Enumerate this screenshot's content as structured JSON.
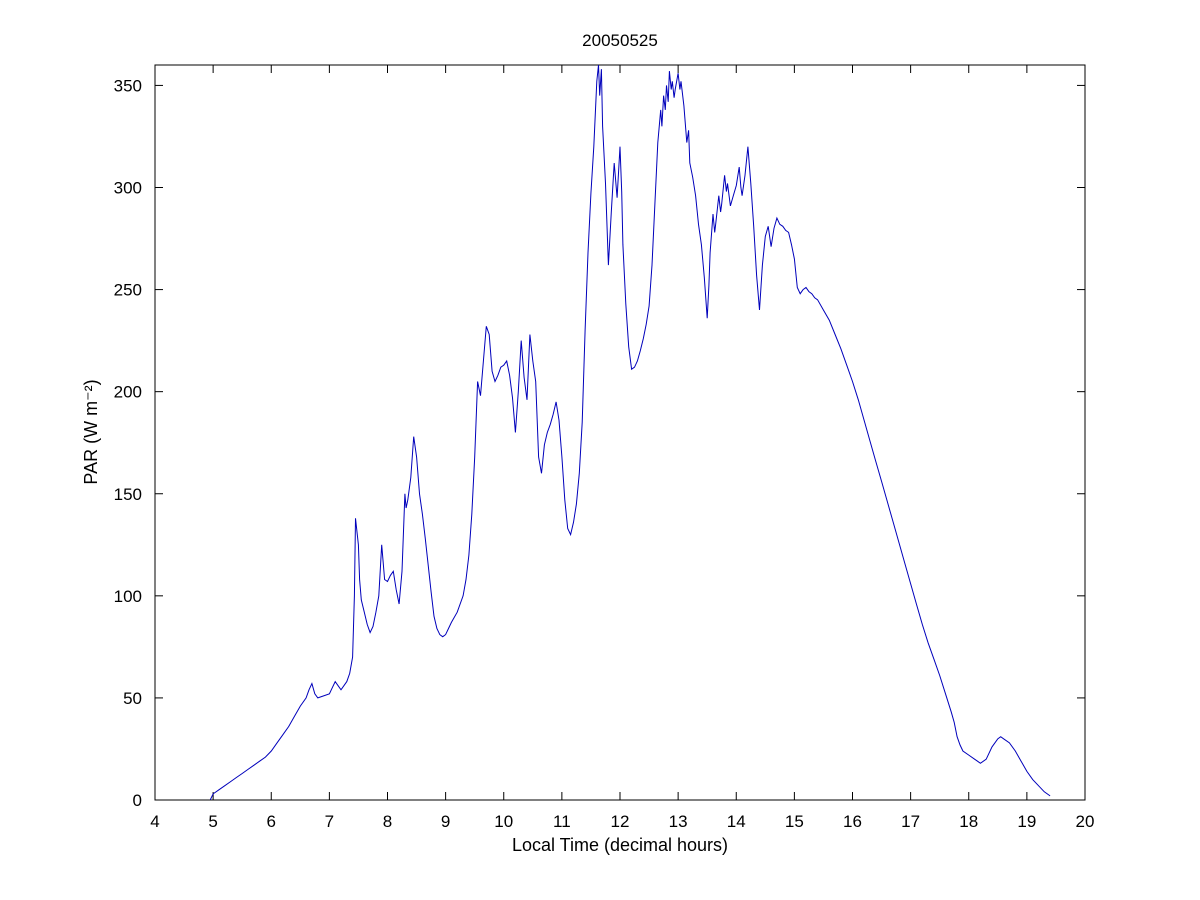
{
  "figure": {
    "background": "#ffffff"
  },
  "chart_data": {
    "type": "line",
    "title": "20050525",
    "xlabel": "Local Time (decimal hours)",
    "ylabel": "PAR (W m⁻²)",
    "xlim": [
      4,
      20
    ],
    "ylim": [
      0,
      360
    ],
    "xticks": [
      4,
      5,
      6,
      7,
      8,
      9,
      10,
      11,
      12,
      13,
      14,
      15,
      16,
      17,
      18,
      19,
      20
    ],
    "yticks": [
      0,
      50,
      100,
      150,
      200,
      250,
      300,
      350
    ],
    "grid": false,
    "legend": null,
    "line_color": "#0000BB",
    "series": [
      {
        "name": "PAR",
        "x": [
          4.95,
          5.0,
          5.1,
          5.2,
          5.3,
          5.4,
          5.5,
          5.6,
          5.7,
          5.8,
          5.9,
          6.0,
          6.1,
          6.2,
          6.3,
          6.4,
          6.5,
          6.6,
          6.65,
          6.7,
          6.75,
          6.8,
          6.9,
          7.0,
          7.05,
          7.1,
          7.15,
          7.2,
          7.25,
          7.3,
          7.35,
          7.4,
          7.43,
          7.45,
          7.5,
          7.52,
          7.55,
          7.6,
          7.65,
          7.7,
          7.75,
          7.8,
          7.85,
          7.9,
          7.92,
          7.95,
          8.0,
          8.05,
          8.1,
          8.15,
          8.2,
          8.25,
          8.3,
          8.32,
          8.35,
          8.4,
          8.45,
          8.5,
          8.55,
          8.6,
          8.65,
          8.7,
          8.75,
          8.8,
          8.85,
          8.9,
          8.95,
          9.0,
          9.05,
          9.1,
          9.2,
          9.3,
          9.35,
          9.4,
          9.45,
          9.5,
          9.55,
          9.6,
          9.65,
          9.7,
          9.75,
          9.8,
          9.85,
          9.9,
          9.95,
          10.0,
          10.05,
          10.1,
          10.15,
          10.2,
          10.25,
          10.3,
          10.35,
          10.4,
          10.45,
          10.5,
          10.55,
          10.6,
          10.65,
          10.7,
          10.75,
          10.8,
          10.85,
          10.9,
          10.95,
          11.0,
          11.05,
          11.1,
          11.15,
          11.2,
          11.25,
          11.3,
          11.35,
          11.4,
          11.45,
          11.5,
          11.55,
          11.6,
          11.63,
          11.65,
          11.68,
          11.7,
          11.75,
          11.8,
          11.85,
          11.9,
          11.95,
          12.0,
          12.03,
          12.05,
          12.1,
          12.15,
          12.2,
          12.25,
          12.3,
          12.35,
          12.4,
          12.45,
          12.5,
          12.55,
          12.6,
          12.65,
          12.7,
          12.72,
          12.75,
          12.78,
          12.8,
          12.83,
          12.85,
          12.88,
          12.9,
          12.93,
          12.95,
          13.0,
          13.03,
          13.05,
          13.1,
          13.15,
          13.18,
          13.2,
          13.25,
          13.3,
          13.35,
          13.4,
          13.45,
          13.5,
          13.53,
          13.55,
          13.6,
          13.63,
          13.65,
          13.7,
          13.73,
          13.75,
          13.8,
          13.83,
          13.85,
          13.9,
          13.95,
          14.0,
          14.05,
          14.08,
          14.1,
          14.15,
          14.2,
          14.25,
          14.3,
          14.35,
          14.4,
          14.45,
          14.5,
          14.55,
          14.6,
          14.65,
          14.7,
          14.75,
          14.8,
          14.85,
          14.9,
          14.95,
          15.0,
          15.05,
          15.1,
          15.15,
          15.2,
          15.25,
          15.3,
          15.35,
          15.4,
          15.5,
          15.6,
          15.7,
          15.8,
          15.9,
          16.0,
          16.1,
          16.2,
          16.3,
          16.4,
          16.5,
          16.6,
          16.7,
          16.8,
          16.9,
          17.0,
          17.1,
          17.2,
          17.3,
          17.4,
          17.5,
          17.6,
          17.7,
          17.75,
          17.8,
          17.85,
          17.9,
          18.0,
          18.1,
          18.15,
          18.2,
          18.3,
          18.4,
          18.5,
          18.55,
          18.6,
          18.7,
          18.8,
          18.9,
          19.0,
          19.1,
          19.2,
          19.3,
          19.4
        ],
        "y": [
          0,
          3,
          5,
          7,
          9,
          11,
          13,
          15,
          17,
          19,
          21,
          24,
          28,
          32,
          36,
          41,
          46,
          50,
          54,
          57,
          52,
          50,
          51,
          52,
          55,
          58,
          56,
          54,
          56,
          58,
          62,
          70,
          100,
          138,
          125,
          108,
          98,
          92,
          86,
          82,
          85,
          92,
          100,
          125,
          118,
          108,
          107,
          110,
          112,
          103,
          96,
          112,
          150,
          143,
          147,
          158,
          178,
          168,
          150,
          140,
          128,
          115,
          102,
          90,
          84,
          81,
          80,
          81,
          84,
          87,
          92,
          100,
          108,
          120,
          140,
          168,
          205,
          198,
          215,
          232,
          228,
          210,
          205,
          208,
          212,
          213,
          215,
          208,
          197,
          180,
          200,
          225,
          207,
          196,
          228,
          215,
          205,
          168,
          160,
          174,
          180,
          184,
          189,
          195,
          186,
          168,
          147,
          133,
          130,
          136,
          145,
          160,
          185,
          230,
          268,
          297,
          320,
          352,
          360,
          345,
          358,
          330,
          302,
          262,
          288,
          312,
          295,
          320,
          298,
          272,
          243,
          222,
          211,
          212,
          215,
          220,
          226,
          233,
          242,
          262,
          292,
          322,
          338,
          330,
          345,
          338,
          350,
          342,
          357,
          348,
          352,
          344,
          348,
          356,
          348,
          352,
          340,
          322,
          328,
          312,
          305,
          296,
          282,
          272,
          256,
          236,
          252,
          268,
          287,
          278,
          283,
          296,
          288,
          292,
          306,
          298,
          302,
          291,
          296,
          301,
          310,
          300,
          296,
          306,
          320,
          302,
          281,
          257,
          240,
          262,
          276,
          281,
          271,
          280,
          285,
          282,
          281,
          279,
          278,
          272,
          265,
          251,
          248,
          250,
          251,
          249,
          248,
          246,
          245,
          240,
          235,
          228,
          221,
          213,
          205,
          196,
          186,
          176,
          166,
          156,
          146,
          136,
          126,
          116,
          106,
          96,
          86,
          77,
          69,
          61,
          52,
          43,
          38,
          31,
          27,
          24,
          22,
          20,
          19,
          18,
          20,
          26,
          30,
          31,
          30,
          28,
          24,
          19,
          14,
          10,
          7,
          4,
          2
        ]
      }
    ]
  }
}
